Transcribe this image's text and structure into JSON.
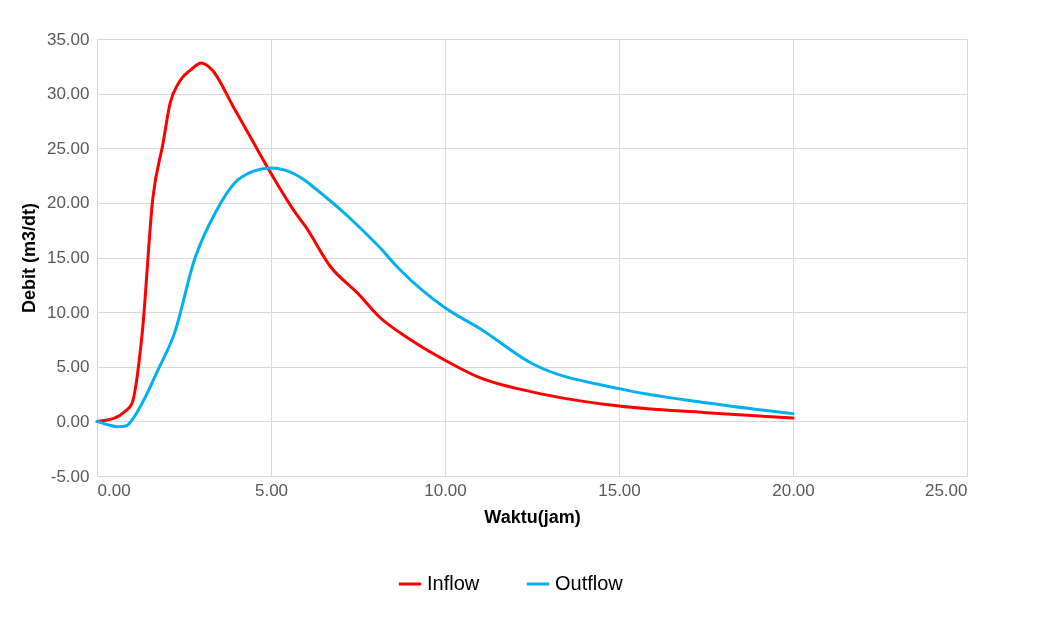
{
  "chart_data": {
    "type": "line",
    "xlabel": "Waktu(jam)",
    "ylabel": "Debit (m3/dt)",
    "xlim": [
      0,
      25
    ],
    "ylim": [
      -5,
      35
    ],
    "xticks": [
      {
        "value": 0,
        "label": "0.00"
      },
      {
        "value": 5,
        "label": "5.00"
      },
      {
        "value": 10,
        "label": "10.00"
      },
      {
        "value": 15,
        "label": "15.00"
      },
      {
        "value": 20,
        "label": "20.00"
      },
      {
        "value": 25,
        "label": "25.00"
      }
    ],
    "yticks": [
      {
        "value": -5,
        "label": "-5.00"
      },
      {
        "value": 0,
        "label": "0.00"
      },
      {
        "value": 5,
        "label": "5.00"
      },
      {
        "value": 10,
        "label": "10.00"
      },
      {
        "value": 15,
        "label": "15.00"
      },
      {
        "value": 20,
        "label": "20.00"
      },
      {
        "value": 25,
        "label": "25.00"
      },
      {
        "value": 30,
        "label": "30.00"
      },
      {
        "value": 35,
        "label": "35.00"
      }
    ],
    "grid": true,
    "legend": "bottom",
    "marker": "none",
    "line_style": "solid",
    "series": [
      {
        "name": "Inflow",
        "color": "#ff0000",
        "x": [
          0,
          0.5,
          0.8,
          1.0,
          1.3,
          1.6,
          1.9,
          2.1,
          2.35,
          2.7,
          3.0,
          3.3,
          3.9,
          4.5,
          5.0,
          5.7,
          6.0,
          6.7,
          7.5,
          8.1,
          9.0,
          10.0,
          11.0,
          12.5,
          15.0,
          17.5,
          20.0
        ],
        "values": [
          0,
          0.3,
          0.9,
          1.6,
          8.1,
          20.3,
          25.5,
          29.1,
          31.0,
          32.2,
          32.8,
          32.2,
          28.9,
          25.5,
          22.7,
          19.1,
          17.8,
          14.2,
          11.7,
          9.6,
          7.5,
          5.6,
          4.0,
          2.7,
          1.4,
          0.8,
          0.3
        ]
      },
      {
        "name": "Outflow",
        "color": "#00b0f0",
        "x": [
          0,
          0.3,
          0.6,
          0.85,
          1.0,
          1.4,
          1.75,
          2.23,
          2.8,
          3.4,
          3.95,
          4.5,
          5.0,
          5.4,
          6.0,
          6.2,
          7.2,
          8.1,
          8.7,
          10.0,
          11.0,
          12.5,
          15.0,
          17.5,
          20.0
        ],
        "values": [
          0,
          -0.3,
          -0.5,
          -0.4,
          0.1,
          2.3,
          4.7,
          8.1,
          14.8,
          19.1,
          21.8,
          22.9,
          23.2,
          23.0,
          22.0,
          21.5,
          18.8,
          16.0,
          13.9,
          10.4,
          8.5,
          5.3,
          3.0,
          1.7,
          0.7
        ]
      }
    ]
  }
}
